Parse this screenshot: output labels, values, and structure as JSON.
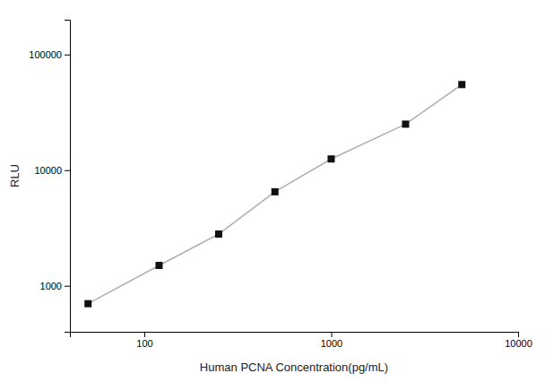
{
  "chart_data": {
    "type": "line",
    "x": [
      50,
      120,
      250,
      500,
      1000,
      2500,
      5000
    ],
    "values": [
      700,
      1500,
      2800,
      6500,
      12500,
      25000,
      55000
    ],
    "xlabel": "Human PCNA Concentration(pg/mL)",
    "ylabel": "RLU",
    "xlim": [
      40,
      10000
    ],
    "ylim": [
      400,
      200000
    ],
    "xticks": [
      100,
      1000,
      10000
    ],
    "yticks": [
      1000,
      10000,
      100000
    ],
    "log": true,
    "grid": false,
    "marker": "square",
    "color": "#111111"
  }
}
